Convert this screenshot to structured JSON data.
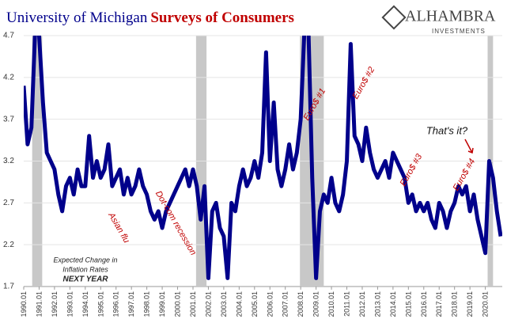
{
  "chart_data": {
    "type": "line",
    "title": "University of Michigan",
    "title_highlight": "Surveys of Consumers",
    "logo": {
      "name": "ALHAMBRA",
      "sub": "INVESTMENTS"
    },
    "series_label": [
      "Expected Change in",
      "Inflation Rates",
      "NEXT YEAR"
    ],
    "annotations": [
      "Asian flu",
      "Dot-com recession",
      "Euro$ #1",
      "Euro$ #2",
      "Euro$ #3",
      "Euro$ #4",
      "That's it?"
    ],
    "recessions": [
      [
        1990.55,
        1991.2
      ],
      [
        2001.2,
        2001.88
      ],
      [
        2007.95,
        2009.5
      ],
      [
        2020.15,
        2020.5
      ]
    ],
    "x": [
      1990,
      1990.25,
      1990.5,
      1990.75,
      1991,
      1991.25,
      1991.5,
      1991.75,
      1992,
      1992.25,
      1992.5,
      1992.75,
      1993,
      1993.25,
      1993.5,
      1993.75,
      1994,
      1994.25,
      1994.5,
      1994.75,
      1995,
      1995.25,
      1995.5,
      1995.75,
      1996,
      1996.25,
      1996.5,
      1996.75,
      1997,
      1997.25,
      1997.5,
      1997.75,
      1998,
      1998.25,
      1998.5,
      1998.75,
      1999,
      1999.25,
      1999.5,
      1999.75,
      2000,
      2000.25,
      2000.5,
      2000.75,
      2001,
      2001.25,
      2001.5,
      2001.75,
      2002,
      2002.25,
      2002.5,
      2002.75,
      2003,
      2003.25,
      2003.5,
      2003.75,
      2004,
      2004.25,
      2004.5,
      2004.75,
      2005,
      2005.25,
      2005.5,
      2005.75,
      2006,
      2006.25,
      2006.5,
      2006.75,
      2007,
      2007.25,
      2007.5,
      2007.75,
      2008,
      2008.25,
      2008.5,
      2008.75,
      2009,
      2009.25,
      2009.5,
      2009.75,
      2010,
      2010.25,
      2010.5,
      2010.75,
      2011,
      2011.25,
      2011.5,
      2011.75,
      2012,
      2012.25,
      2012.5,
      2012.75,
      2013,
      2013.25,
      2013.5,
      2013.75,
      2014,
      2014.25,
      2014.5,
      2014.75,
      2015,
      2015.25,
      2015.5,
      2015.75,
      2016,
      2016.25,
      2016.5,
      2016.75,
      2017,
      2017.25,
      2017.5,
      2017.75,
      2018,
      2018.25,
      2018.5,
      2018.75,
      2019,
      2019.25,
      2019.5,
      2019.75,
      2020,
      2020.25,
      2020.5,
      2020.75,
      2021
    ],
    "series": [
      {
        "name": "Expected Change in Inflation Rates",
        "color": "#00008b",
        "values": [
          4.1,
          3.4,
          3.6,
          4.8,
          4.7,
          3.9,
          3.3,
          3.2,
          3.1,
          2.8,
          2.6,
          2.9,
          3.0,
          2.8,
          3.1,
          2.9,
          2.9,
          3.5,
          3.0,
          3.2,
          3.0,
          3.1,
          3.4,
          2.9,
          3.0,
          3.1,
          2.8,
          3.0,
          2.8,
          2.9,
          3.1,
          2.9,
          2.8,
          2.6,
          2.5,
          2.6,
          2.4,
          2.6,
          2.7,
          2.8,
          2.9,
          3.0,
          3.1,
          2.9,
          3.1,
          2.9,
          2.5,
          2.9,
          1.8,
          2.6,
          2.7,
          2.4,
          2.3,
          1.8,
          2.7,
          2.6,
          2.9,
          3.1,
          2.9,
          3.0,
          3.2,
          3.0,
          3.3,
          4.5,
          3.2,
          3.9,
          3.1,
          2.9,
          3.1,
          3.4,
          3.1,
          3.3,
          3.7,
          4.8,
          4.8,
          3.0,
          1.8,
          2.6,
          2.8,
          2.7,
          3.0,
          2.7,
          2.6,
          2.8,
          3.2,
          4.6,
          3.5,
          3.4,
          3.2,
          3.6,
          3.3,
          3.1,
          3.0,
          3.1,
          3.2,
          3.0,
          3.3,
          3.2,
          3.1,
          3.0,
          2.7,
          2.8,
          2.6,
          2.7,
          2.6,
          2.7,
          2.5,
          2.4,
          2.7,
          2.6,
          2.4,
          2.6,
          2.7,
          2.9,
          2.8,
          2.9,
          2.6,
          2.8,
          2.5,
          2.3,
          2.1,
          3.2,
          3.0,
          2.6,
          2.3
        ]
      }
    ],
    "xlim": [
      1990,
      2021.1
    ],
    "xticks": [
      {
        "value": 1990,
        "label": "1990.01"
      },
      {
        "value": 1991,
        "label": "1991.01"
      },
      {
        "value": 1992,
        "label": "1992.01"
      },
      {
        "value": 1993,
        "label": "1993.01"
      },
      {
        "value": 1994,
        "label": "1994.01"
      },
      {
        "value": 1995,
        "label": "1995.01"
      },
      {
        "value": 1996,
        "label": "1996.01"
      },
      {
        "value": 1997,
        "label": "1997.01"
      },
      {
        "value": 1998,
        "label": "1998.01"
      },
      {
        "value": 1999,
        "label": "1999.01"
      },
      {
        "value": 2000,
        "label": "2000.01"
      },
      {
        "value": 2001,
        "label": "2001.01"
      },
      {
        "value": 2002,
        "label": "2002.01"
      },
      {
        "value": 2003,
        "label": "2003.01"
      },
      {
        "value": 2004,
        "label": "2004.01"
      },
      {
        "value": 2005,
        "label": "2005.01"
      },
      {
        "value": 2006,
        "label": "2006.01"
      },
      {
        "value": 2007,
        "label": "2007.01"
      },
      {
        "value": 2008,
        "label": "2008.01"
      },
      {
        "value": 2009,
        "label": "2009.01"
      },
      {
        "value": 2010,
        "label": "2010.01"
      },
      {
        "value": 2011,
        "label": "2011.01"
      },
      {
        "value": 2012,
        "label": "2012.01"
      },
      {
        "value": 2013,
        "label": "2013.01"
      },
      {
        "value": 2014,
        "label": "2014.01"
      },
      {
        "value": 2015,
        "label": "2015.01"
      },
      {
        "value": 2016,
        "label": "2016.01"
      },
      {
        "value": 2017,
        "label": "2017.01"
      },
      {
        "value": 2018,
        "label": "2018.01"
      },
      {
        "value": 2019,
        "label": "2019.01"
      },
      {
        "value": 2020,
        "label": "2020.01"
      }
    ],
    "ylim": [
      1.7,
      4.7
    ],
    "yticks": [
      1.7,
      2.2,
      2.7,
      3.2,
      3.7,
      4.2,
      4.7
    ],
    "grid": true
  }
}
